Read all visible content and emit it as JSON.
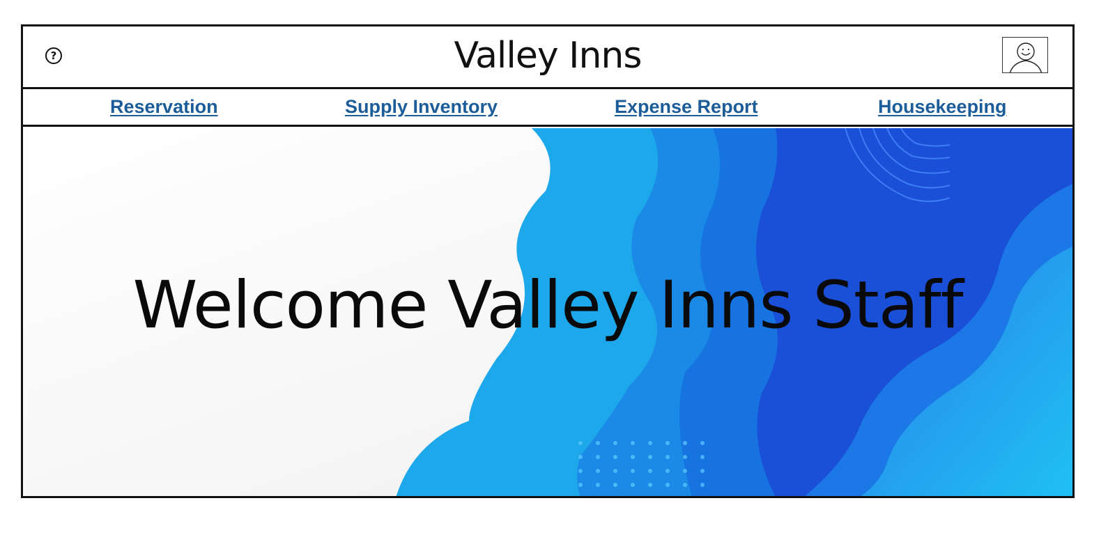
{
  "header": {
    "title": "Valley Inns",
    "help_icon": "help-circle-icon",
    "avatar_icon": "user-avatar-icon"
  },
  "nav": {
    "items": [
      {
        "label": "Reservation"
      },
      {
        "label": "Supply Inventory"
      },
      {
        "label": "Expense Report"
      },
      {
        "label": "Housekeeping"
      }
    ]
  },
  "hero": {
    "title": "Welcome Valley Inns Staff"
  },
  "colors": {
    "link": "#1c5d99",
    "border": "#111111",
    "accent_blue": "#1a4fd8",
    "light_blue": "#1fb6f0"
  }
}
